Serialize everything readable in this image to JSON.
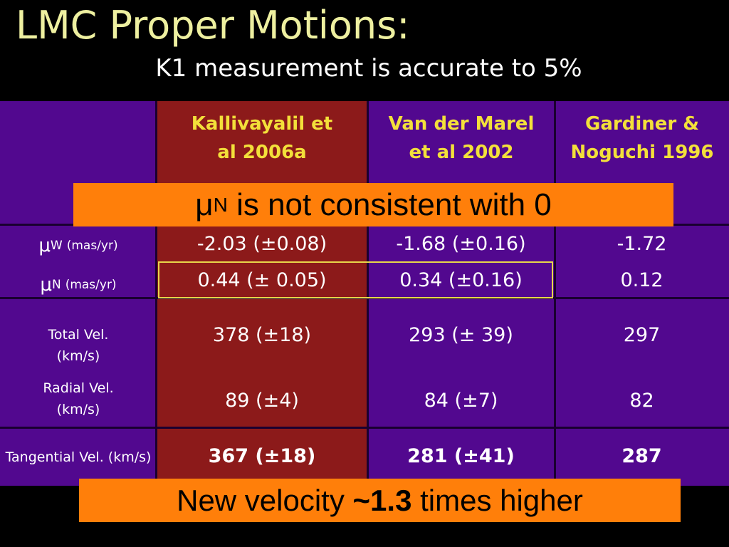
{
  "title": "LMC Proper Motions:",
  "subtitle": "K1 measurement is accurate to 5%",
  "table": {
    "header": [
      "Kallivayalil et al 2006a",
      "Van der Marel et al 2002",
      "Gardiner & Noguchi 1996"
    ],
    "rows": [
      {
        "label": {
          "symbol": "μ",
          "sub": "W",
          "unit": "(mas/yr)"
        },
        "cells": [
          "-2.03 (±0.08)",
          "-1.68 (±0.16)",
          "-1.72"
        ]
      },
      {
        "label": {
          "symbol": "μ",
          "sub": "N",
          "unit": "(mas/yr)"
        },
        "cells": [
          "0.44 (± 0.05)",
          "0.34 (±0.16)",
          "0.12"
        ]
      },
      {
        "label": "Total Vel. (km/s)",
        "cells": [
          "378 (±18)",
          "293 (± 39)",
          "297"
        ]
      },
      {
        "label": "Radial Vel. (km/s)",
        "cells": [
          "89 (±4)",
          "84 (±7)",
          "82"
        ]
      },
      {
        "label": "Tangential Vel. (km/s)",
        "cells": [
          "367 (±18)",
          "281 (±41)",
          "287"
        ]
      }
    ]
  },
  "callouts": [
    {
      "symbol": "μ",
      "sub": "N",
      "text": " is not consistent with 0"
    },
    {
      "before": "New velocity ",
      "emphasis": "~1.3",
      "after": " times higher"
    }
  ]
}
